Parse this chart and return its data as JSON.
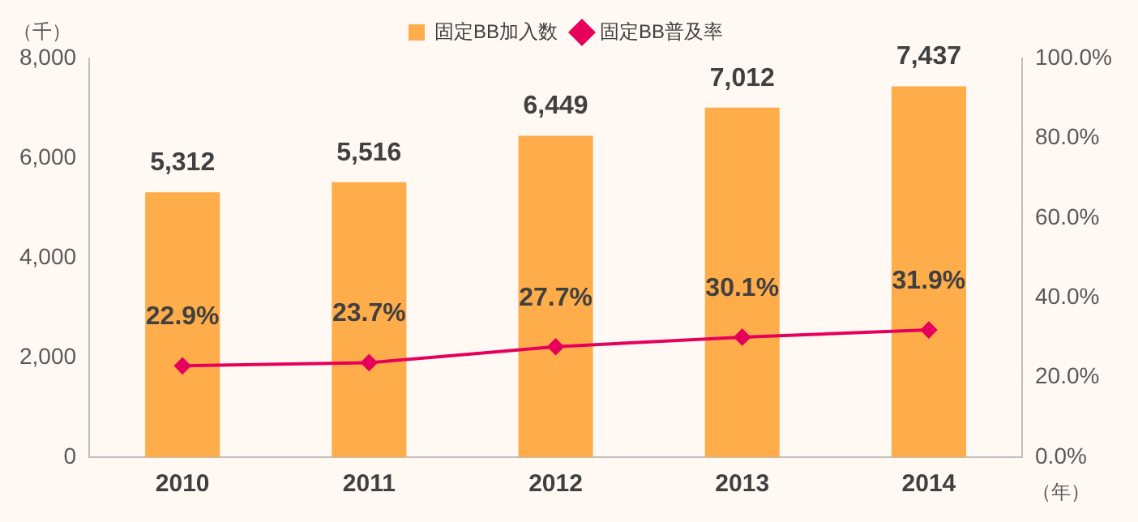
{
  "chart_data": {
    "type": "bar",
    "categories": [
      "2010",
      "2011",
      "2012",
      "2013",
      "2014"
    ],
    "ylabel": "（千）",
    "xlabel": "（年）",
    "series": [
      {
        "name": "固定BB加入数",
        "color": "#ffad4b",
        "values": [
          5312,
          5516,
          6449,
          7012,
          7437
        ],
        "value_labels": [
          "5,312",
          "5,516",
          "6,449",
          "7,012",
          "7,437"
        ]
      },
      {
        "name": "固定BB普及率",
        "type": "line",
        "axis": "y2",
        "color": "#e6005c",
        "marker": "diamond",
        "line_style": "solid",
        "values": [
          22.9,
          23.7,
          27.7,
          30.1,
          31.9
        ],
        "value_labels": [
          "22.9%",
          "23.7%",
          "27.7%",
          "30.1%",
          "31.9%"
        ]
      }
    ],
    "ylim": [
      0,
      8000
    ],
    "yticks": [
      {
        "value": 0,
        "label": "0"
      },
      {
        "value": 2000,
        "label": "2,000"
      },
      {
        "value": 4000,
        "label": "4,000"
      },
      {
        "value": 6000,
        "label": "6,000"
      },
      {
        "value": 8000,
        "label": "8,000"
      }
    ],
    "y2lim": [
      0,
      100
    ],
    "y2ticks": [
      {
        "value": 0,
        "label": "0.0%"
      },
      {
        "value": 20,
        "label": "20.0%"
      },
      {
        "value": 40,
        "label": "40.0%"
      },
      {
        "value": 60,
        "label": "60.0%"
      },
      {
        "value": 80,
        "label": "80.0%"
      },
      {
        "value": 100,
        "label": "100.0%"
      }
    ],
    "grid": false,
    "legend": "top"
  }
}
